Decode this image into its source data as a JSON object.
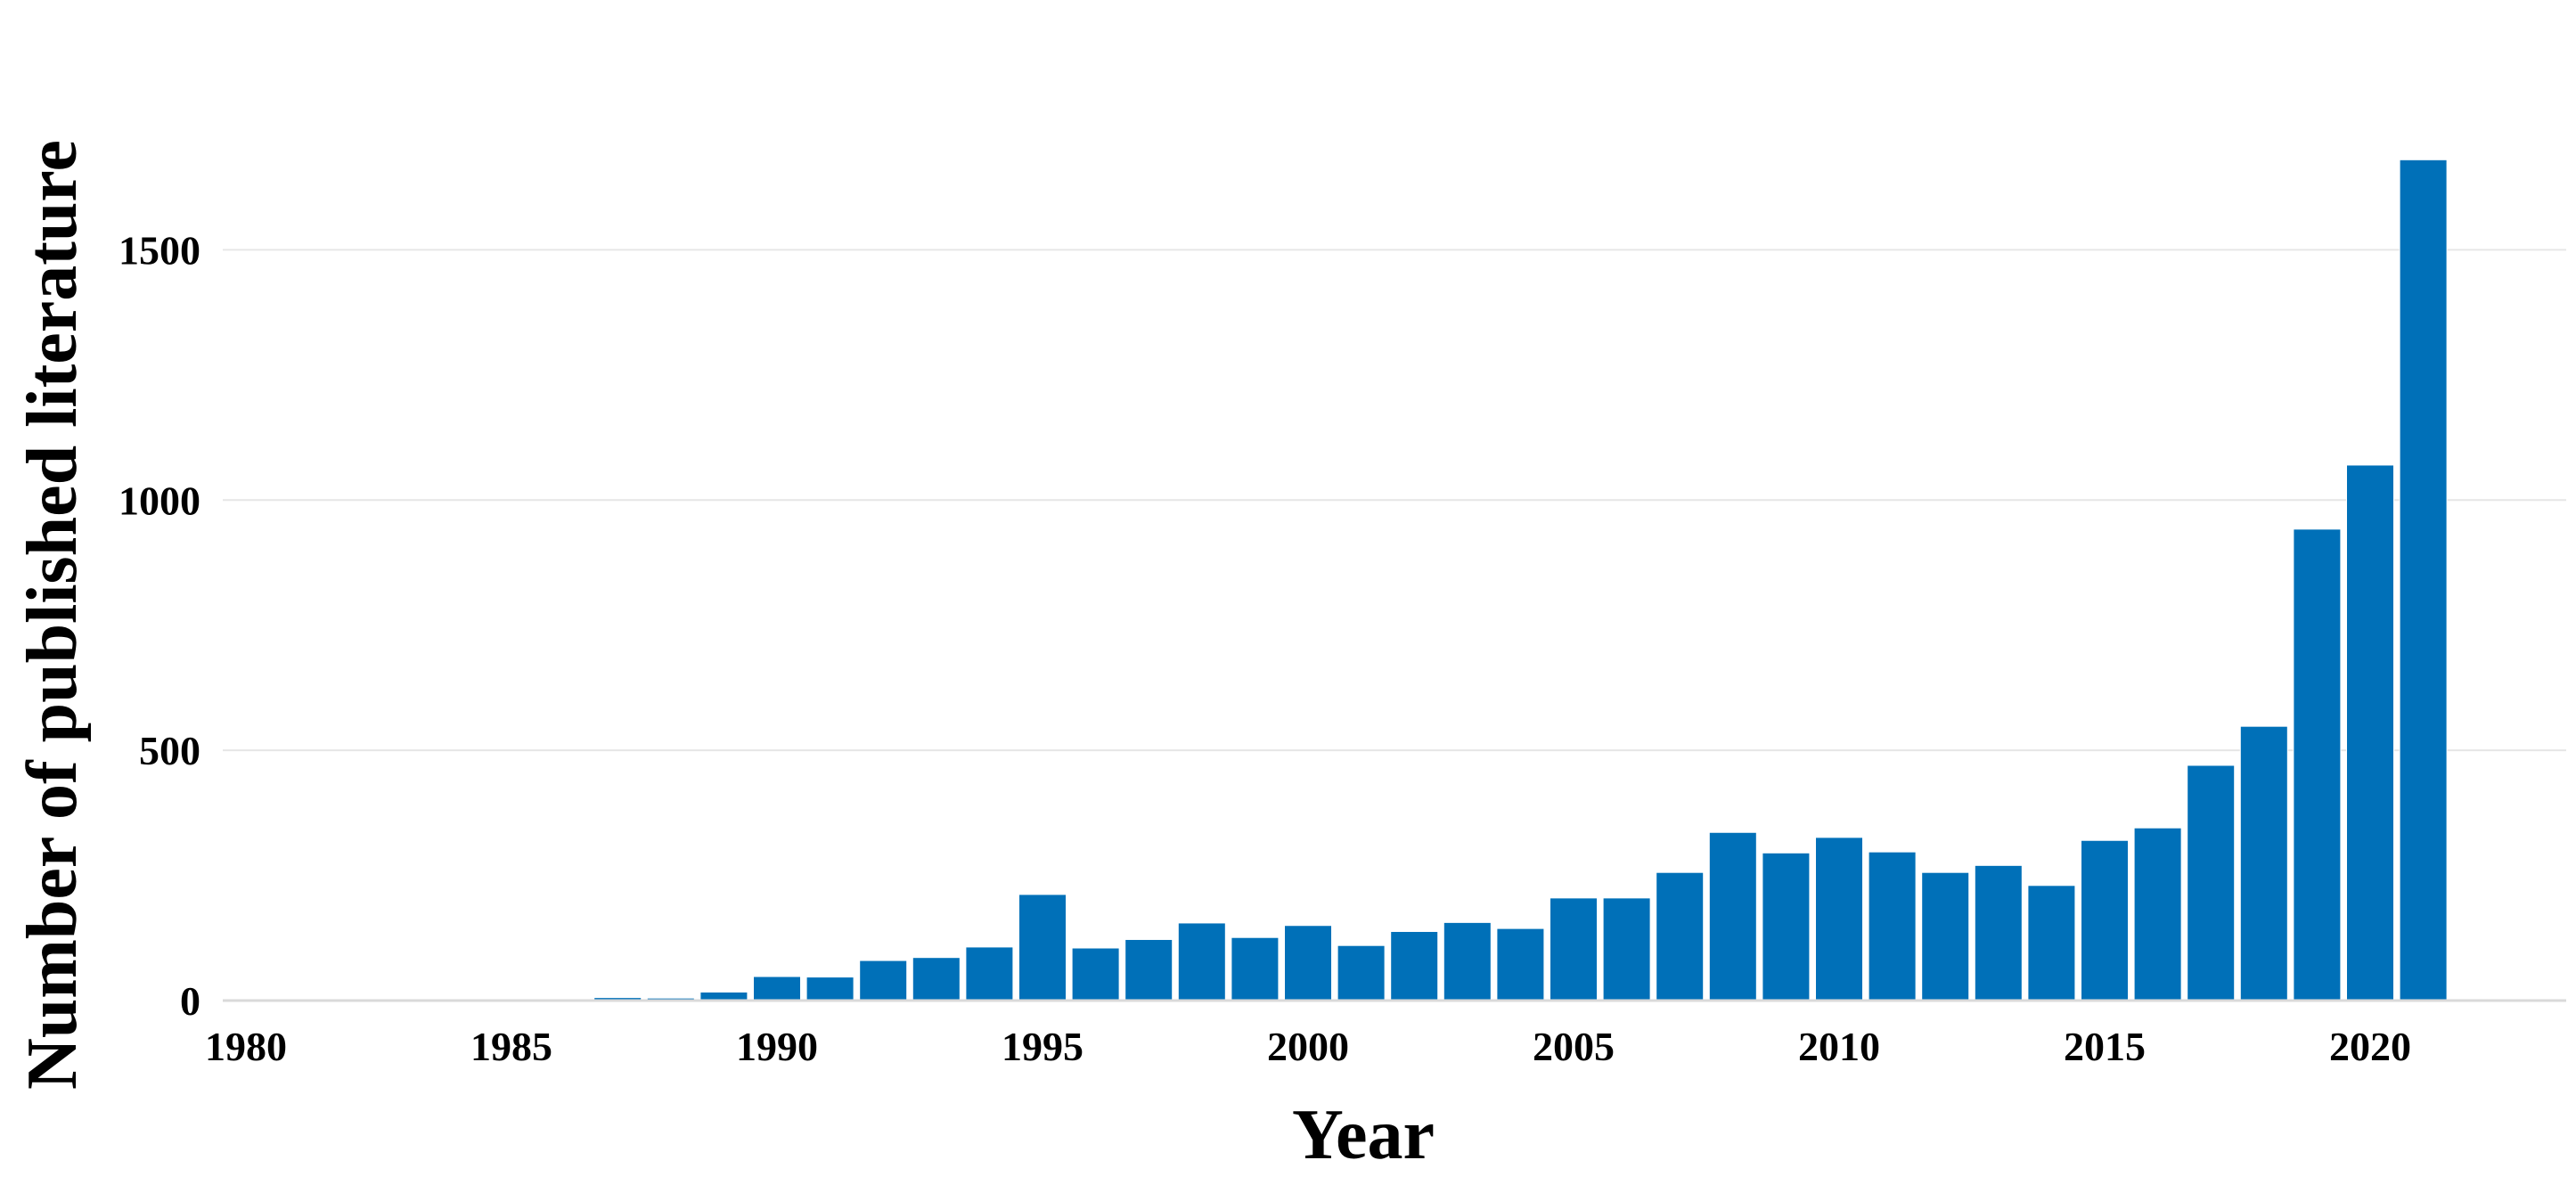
{
  "chart_data": {
    "type": "bar",
    "xlabel": "Year",
    "ylabel": "Number of published literature",
    "ylim": [
      0,
      1750
    ],
    "yticks": [
      0,
      500,
      1000,
      1500
    ],
    "xticks": [
      1980,
      1985,
      1990,
      1995,
      2000,
      2005,
      2010,
      2015,
      2020
    ],
    "grid": "horizontal",
    "bar_color": "#0070b8",
    "categories": [
      1980,
      1981,
      1982,
      1983,
      1984,
      1985,
      1986,
      1987,
      1988,
      1989,
      1990,
      1991,
      1992,
      1993,
      1994,
      1995,
      1996,
      1997,
      1998,
      1999,
      2000,
      2001,
      2002,
      2003,
      2004,
      2005,
      2006,
      2007,
      2008,
      2009,
      2010,
      2011,
      2012,
      2013,
      2014,
      2015,
      2016,
      2017,
      2018,
      2019,
      2020,
      2021
    ],
    "values": [
      1,
      1,
      1,
      1,
      3,
      3,
      2,
      6,
      5,
      17,
      48,
      47,
      80,
      86,
      107,
      212,
      105,
      122,
      155,
      126,
      150,
      110,
      138,
      156,
      144,
      205,
      205,
      256,
      336,
      295,
      326,
      297,
      256,
      270,
      230,
      320,
      345,
      470,
      548,
      942,
      1070,
      1680
    ]
  }
}
